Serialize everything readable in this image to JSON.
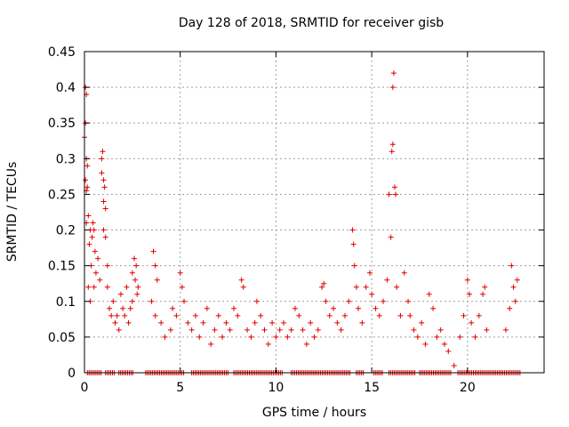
{
  "chart_data": {
    "type": "scatter",
    "title": "Day 128 of 2018, SRMTID for receiver gisb",
    "xlabel": "GPS time / hours",
    "ylabel": "SRMTID / TECUs",
    "xlim": [
      0,
      24
    ],
    "ylim": [
      0,
      0.45
    ],
    "xticks": [
      "0",
      "5",
      "10",
      "15",
      "20"
    ],
    "yticks": [
      "0",
      "0.05",
      "0.1",
      "0.15",
      "0.2",
      "0.25",
      "0.3",
      "0.35",
      "0.4",
      "0.45"
    ],
    "grid": true,
    "marker": "+",
    "marker_color": "#e00000",
    "series": [
      {
        "name": "SRMTID",
        "points": [
          [
            0.05,
            0.4
          ],
          [
            0.1,
            0.39
          ],
          [
            0.05,
            0.35
          ],
          [
            0.0,
            0.33
          ],
          [
            0.1,
            0.3
          ],
          [
            0.15,
            0.29
          ],
          [
            0.05,
            0.27
          ],
          [
            0.1,
            0.255
          ],
          [
            0.15,
            0.26
          ],
          [
            0.2,
            0.22
          ],
          [
            0.1,
            0.21
          ],
          [
            0.3,
            0.2
          ],
          [
            0.25,
            0.18
          ],
          [
            0.4,
            0.19
          ],
          [
            0.35,
            0.15
          ],
          [
            0.2,
            0.12
          ],
          [
            0.3,
            0.1
          ],
          [
            0.45,
            0.21
          ],
          [
            0.5,
            0.2
          ],
          [
            0.55,
            0.17
          ],
          [
            0.6,
            0.14
          ],
          [
            0.5,
            0.12
          ],
          [
            0.7,
            0.16
          ],
          [
            0.8,
            0.13
          ],
          [
            0.9,
            0.3
          ],
          [
            0.95,
            0.31
          ],
          [
            0.9,
            0.28
          ],
          [
            1.0,
            0.27
          ],
          [
            1.05,
            0.26
          ],
          [
            1.0,
            0.24
          ],
          [
            1.1,
            0.23
          ],
          [
            1.0,
            0.2
          ],
          [
            1.1,
            0.19
          ],
          [
            1.2,
            0.15
          ],
          [
            1.2,
            0.12
          ],
          [
            1.3,
            0.09
          ],
          [
            1.4,
            0.08
          ],
          [
            1.5,
            0.1
          ],
          [
            1.6,
            0.07
          ],
          [
            1.7,
            0.08
          ],
          [
            1.8,
            0.06
          ],
          [
            1.9,
            0.11
          ],
          [
            2.0,
            0.09
          ],
          [
            2.1,
            0.08
          ],
          [
            2.2,
            0.12
          ],
          [
            2.3,
            0.07
          ],
          [
            2.4,
            0.09
          ],
          [
            2.5,
            0.1
          ],
          [
            2.6,
            0.16
          ],
          [
            2.7,
            0.15
          ],
          [
            2.65,
            0.13
          ],
          [
            2.75,
            0.11
          ],
          [
            2.8,
            0.12
          ],
          [
            2.5,
            0.14
          ],
          [
            3.6,
            0.17
          ],
          [
            3.7,
            0.15
          ],
          [
            3.8,
            0.13
          ],
          [
            3.5,
            0.1
          ],
          [
            3.7,
            0.08
          ],
          [
            4.0,
            0.07
          ],
          [
            4.2,
            0.05
          ],
          [
            4.5,
            0.06
          ],
          [
            4.6,
            0.09
          ],
          [
            4.8,
            0.08
          ],
          [
            5.0,
            0.14
          ],
          [
            5.1,
            0.12
          ],
          [
            5.2,
            0.1
          ],
          [
            5.4,
            0.07
          ],
          [
            5.6,
            0.06
          ],
          [
            5.8,
            0.08
          ],
          [
            6.0,
            0.05
          ],
          [
            6.2,
            0.07
          ],
          [
            6.4,
            0.09
          ],
          [
            6.6,
            0.04
          ],
          [
            6.8,
            0.06
          ],
          [
            7.0,
            0.08
          ],
          [
            7.2,
            0.05
          ],
          [
            7.4,
            0.07
          ],
          [
            7.6,
            0.06
          ],
          [
            7.8,
            0.09
          ],
          [
            8.0,
            0.08
          ],
          [
            8.2,
            0.13
          ],
          [
            8.3,
            0.12
          ],
          [
            8.5,
            0.06
          ],
          [
            8.7,
            0.05
          ],
          [
            8.9,
            0.07
          ],
          [
            9.0,
            0.1
          ],
          [
            9.2,
            0.08
          ],
          [
            9.4,
            0.06
          ],
          [
            9.6,
            0.04
          ],
          [
            9.8,
            0.07
          ],
          [
            10.0,
            0.05
          ],
          [
            10.2,
            0.06
          ],
          [
            10.4,
            0.07
          ],
          [
            10.6,
            0.05
          ],
          [
            10.8,
            0.06
          ],
          [
            11.0,
            0.09
          ],
          [
            11.2,
            0.08
          ],
          [
            11.4,
            0.06
          ],
          [
            11.6,
            0.04
          ],
          [
            11.8,
            0.07
          ],
          [
            12.0,
            0.05
          ],
          [
            12.2,
            0.06
          ],
          [
            12.4,
            0.12
          ],
          [
            12.5,
            0.125
          ],
          [
            12.6,
            0.1
          ],
          [
            12.8,
            0.08
          ],
          [
            13.0,
            0.09
          ],
          [
            13.2,
            0.07
          ],
          [
            13.4,
            0.06
          ],
          [
            13.6,
            0.08
          ],
          [
            13.8,
            0.1
          ],
          [
            14.0,
            0.2
          ],
          [
            14.05,
            0.18
          ],
          [
            14.1,
            0.15
          ],
          [
            14.2,
            0.12
          ],
          [
            14.3,
            0.09
          ],
          [
            14.5,
            0.07
          ],
          [
            14.7,
            0.12
          ],
          [
            14.9,
            0.14
          ],
          [
            15.0,
            0.11
          ],
          [
            15.2,
            0.09
          ],
          [
            15.4,
            0.08
          ],
          [
            15.6,
            0.1
          ],
          [
            15.8,
            0.13
          ],
          [
            15.9,
            0.25
          ],
          [
            16.0,
            0.19
          ],
          [
            16.05,
            0.31
          ],
          [
            16.1,
            0.32
          ],
          [
            16.1,
            0.4
          ],
          [
            16.15,
            0.42
          ],
          [
            16.2,
            0.26
          ],
          [
            16.25,
            0.25
          ],
          [
            16.3,
            0.12
          ],
          [
            16.5,
            0.08
          ],
          [
            16.7,
            0.14
          ],
          [
            16.9,
            0.1
          ],
          [
            17.0,
            0.08
          ],
          [
            17.2,
            0.06
          ],
          [
            17.4,
            0.05
          ],
          [
            17.6,
            0.07
          ],
          [
            17.8,
            0.04
          ],
          [
            18.0,
            0.11
          ],
          [
            18.2,
            0.09
          ],
          [
            18.4,
            0.05
          ],
          [
            18.6,
            0.06
          ],
          [
            18.8,
            0.04
          ],
          [
            19.0,
            0.03
          ],
          [
            19.3,
            0.01
          ],
          [
            19.6,
            0.05
          ],
          [
            19.8,
            0.08
          ],
          [
            20.0,
            0.13
          ],
          [
            20.1,
            0.11
          ],
          [
            20.2,
            0.07
          ],
          [
            20.4,
            0.05
          ],
          [
            20.6,
            0.08
          ],
          [
            20.8,
            0.11
          ],
          [
            20.9,
            0.12
          ],
          [
            21.0,
            0.06
          ],
          [
            22.0,
            0.06
          ],
          [
            22.2,
            0.09
          ],
          [
            22.3,
            0.15
          ],
          [
            22.4,
            0.12
          ],
          [
            22.5,
            0.1
          ],
          [
            22.6,
            0.13
          ]
        ]
      }
    ],
    "zero_band": [
      [
        0.15,
        0.9
      ],
      [
        1.1,
        1.6
      ],
      [
        1.8,
        2.6
      ],
      [
        3.2,
        5.2
      ],
      [
        5.6,
        7.5
      ],
      [
        7.8,
        10.4
      ],
      [
        10.8,
        13.9
      ],
      [
        14.2,
        14.6
      ],
      [
        15.1,
        15.6
      ],
      [
        15.9,
        17.3
      ],
      [
        17.5,
        19.2
      ],
      [
        19.5,
        22.8
      ]
    ]
  }
}
